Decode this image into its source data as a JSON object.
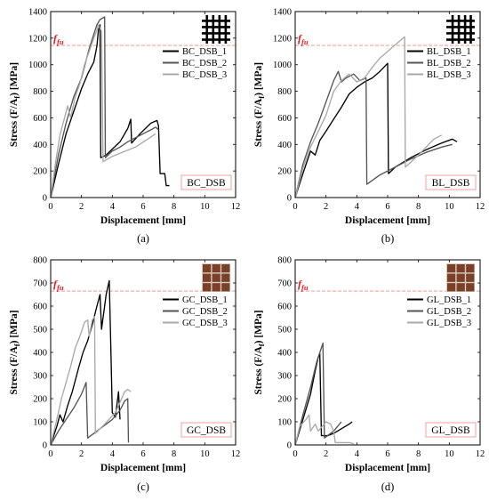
{
  "figure": {
    "colors": {
      "series": [
        "#000000",
        "#555555",
        "#a8a8a8"
      ],
      "ffu_line": "#f08a8a",
      "ffu_text": "#e31a1c",
      "label_box": "#f2a0a0",
      "icon_brown": "#7a4028",
      "icon_mortar": "#d9c9bf"
    }
  },
  "chart_data": [
    {
      "type": "line",
      "panel_label": "(a)",
      "box_label": "BC_DSB",
      "icon": "carbon-grid-icon",
      "xlabel": "Displacement  [mm]",
      "ylabel": "Stress (F/A_f) [MPa]",
      "xlim": [
        0,
        12
      ],
      "ylim": [
        0,
        1400
      ],
      "xticks": [
        0,
        2,
        4,
        6,
        8,
        10,
        12
      ],
      "yticks": [
        0,
        200,
        400,
        600,
        800,
        1000,
        1200,
        1400
      ],
      "ref_line": {
        "label_main": "f",
        "label_sub": "fu",
        "y": 1145
      },
      "legend_position": "top-right",
      "grid": false,
      "series": [
        {
          "name": "BC_DSB_1",
          "points": [
            [
              0,
              0
            ],
            [
              0.5,
              250
            ],
            [
              1,
              480
            ],
            [
              1.5,
              650
            ],
            [
              2,
              820
            ],
            [
              2.4,
              930
            ],
            [
              2.8,
              1020
            ],
            [
              3.0,
              1140
            ],
            [
              3.1,
              1260
            ],
            [
              3.2,
              1300
            ],
            [
              3.25,
              300
            ],
            [
              3.6,
              320
            ],
            [
              4.5,
              420
            ],
            [
              5.0,
              520
            ],
            [
              5.2,
              590
            ],
            [
              5.25,
              410
            ],
            [
              5.8,
              480
            ],
            [
              6.5,
              560
            ],
            [
              6.9,
              580
            ],
            [
              7.0,
              540
            ],
            [
              7.1,
              180
            ],
            [
              7.4,
              180
            ],
            [
              7.5,
              90
            ],
            [
              7.7,
              90
            ]
          ]
        },
        {
          "name": "BC_DSB_2",
          "points": [
            [
              0,
              0
            ],
            [
              0.5,
              320
            ],
            [
              1,
              560
            ],
            [
              1.5,
              760
            ],
            [
              2,
              900
            ],
            [
              2.5,
              1120
            ],
            [
              2.8,
              1230
            ],
            [
              3.0,
              1300
            ],
            [
              3.2,
              1340
            ],
            [
              3.5,
              1360
            ],
            [
              3.55,
              300
            ],
            [
              4,
              350
            ],
            [
              4.5,
              380
            ],
            [
              5,
              420
            ],
            [
              5.5,
              450
            ],
            [
              6,
              480
            ],
            [
              6.5,
              510
            ],
            [
              6.8,
              530
            ],
            [
              7.0,
              510
            ]
          ]
        },
        {
          "name": "BC_DSB_3",
          "points": [
            [
              0,
              0
            ],
            [
              0.3,
              250
            ],
            [
              0.6,
              470
            ],
            [
              0.9,
              600
            ],
            [
              1.1,
              690
            ],
            [
              1.3,
              600
            ],
            [
              1.6,
              760
            ],
            [
              1.9,
              860
            ],
            [
              2.2,
              1000
            ],
            [
              2.5,
              1100
            ],
            [
              2.8,
              1200
            ],
            [
              3.0,
              1260
            ],
            [
              3.1,
              1300
            ],
            [
              3.3,
              1250
            ],
            [
              3.4,
              270
            ],
            [
              4.0,
              310
            ],
            [
              5.5,
              380
            ],
            [
              6.3,
              440
            ],
            [
              6.8,
              480
            ]
          ]
        }
      ]
    },
    {
      "type": "line",
      "panel_label": "(b)",
      "box_label": "BL_DSB",
      "icon": "basalt-grid-icon",
      "xlabel": "Displacement  [mm]",
      "ylabel": "Stress (F/A_f) [MPa]",
      "xlim": [
        0,
        12
      ],
      "ylim": [
        0,
        1400
      ],
      "xticks": [
        0,
        2,
        4,
        6,
        8,
        10,
        12
      ],
      "yticks": [
        0,
        200,
        400,
        600,
        800,
        1000,
        1200,
        1400
      ],
      "ref_line": {
        "label_main": "f",
        "label_sub": "fu",
        "y": 1145
      },
      "legend_position": "top-right",
      "grid": false,
      "series": [
        {
          "name": "BL_DSB_1",
          "points": [
            [
              0,
              0
            ],
            [
              0.5,
              180
            ],
            [
              1,
              350
            ],
            [
              1.3,
              320
            ],
            [
              1.6,
              430
            ],
            [
              2,
              500
            ],
            [
              2.5,
              590
            ],
            [
              3,
              680
            ],
            [
              3.5,
              780
            ],
            [
              4,
              830
            ],
            [
              4.5,
              870
            ],
            [
              5,
              900
            ],
            [
              5.5,
              950
            ],
            [
              6,
              1010
            ],
            [
              6.05,
              180
            ],
            [
              6.5,
              230
            ],
            [
              7.5,
              300
            ],
            [
              8.5,
              360
            ],
            [
              9.5,
              410
            ],
            [
              10.2,
              440
            ],
            [
              10.5,
              420
            ]
          ]
        },
        {
          "name": "BL_DSB_2",
          "points": [
            [
              0,
              0
            ],
            [
              0.5,
              250
            ],
            [
              1,
              420
            ],
            [
              1.5,
              560
            ],
            [
              2,
              720
            ],
            [
              2.5,
              880
            ],
            [
              2.8,
              950
            ],
            [
              3.0,
              870
            ],
            [
              3.3,
              900
            ],
            [
              3.8,
              930
            ],
            [
              4.2,
              880
            ],
            [
              4.6,
              900
            ],
            [
              4.65,
              100
            ],
            [
              5.5,
              170
            ],
            [
              6.5,
              230
            ],
            [
              7.5,
              290
            ],
            [
              8.5,
              340
            ],
            [
              9.5,
              380
            ],
            [
              10.2,
              400
            ]
          ]
        },
        {
          "name": "BL_DSB_3",
          "points": [
            [
              0,
              0
            ],
            [
              0.5,
              220
            ],
            [
              1,
              380
            ],
            [
              1.5,
              500
            ],
            [
              2,
              620
            ],
            [
              2.5,
              800
            ],
            [
              3,
              880
            ],
            [
              3.5,
              930
            ],
            [
              4,
              870
            ],
            [
              4.5,
              900
            ],
            [
              5,
              980
            ],
            [
              5.5,
              1050
            ],
            [
              6,
              1100
            ],
            [
              6.5,
              1150
            ],
            [
              7.0,
              1200
            ],
            [
              7.1,
              1210
            ],
            [
              7.15,
              230
            ],
            [
              8,
              320
            ],
            [
              8.5,
              380
            ],
            [
              9.0,
              440
            ],
            [
              9.5,
              470
            ]
          ]
        }
      ]
    },
    {
      "type": "line",
      "panel_label": "(c)",
      "box_label": "GC_DSB",
      "icon": "glass-mesh-icon",
      "xlabel": "Displacement  [mm]",
      "ylabel": "Stress (F/A_f) [MPa]",
      "xlim": [
        0,
        12
      ],
      "ylim": [
        0,
        800
      ],
      "xticks": [
        0,
        2,
        4,
        6,
        8,
        10,
        12
      ],
      "yticks": [
        0,
        100,
        200,
        300,
        400,
        500,
        600,
        700,
        800
      ],
      "ref_line": {
        "label_main": "f",
        "label_sub": "fu",
        "y": 665
      },
      "legend_position": "top-right",
      "grid": false,
      "series": [
        {
          "name": "GC_DSB_1",
          "points": [
            [
              0,
              0
            ],
            [
              0.4,
              80
            ],
            [
              0.6,
              130
            ],
            [
              0.8,
              100
            ],
            [
              1.1,
              170
            ],
            [
              1.4,
              230
            ],
            [
              1.8,
              330
            ],
            [
              2.1,
              400
            ],
            [
              2.4,
              450
            ],
            [
              2.7,
              520
            ],
            [
              3.0,
              600
            ],
            [
              3.2,
              650
            ],
            [
              3.3,
              500
            ],
            [
              3.6,
              650
            ],
            [
              3.8,
              710
            ],
            [
              3.9,
              430
            ],
            [
              4.0,
              140
            ],
            [
              4.2,
              120
            ],
            [
              4.4,
              230
            ],
            [
              4.5,
              110
            ]
          ]
        },
        {
          "name": "GC_DSB_2",
          "points": [
            [
              0,
              0
            ],
            [
              0.5,
              60
            ],
            [
              1,
              110
            ],
            [
              1.5,
              160
            ],
            [
              2,
              220
            ],
            [
              2.3,
              270
            ],
            [
              2.4,
              30
            ],
            [
              3,
              60
            ],
            [
              4,
              110
            ],
            [
              4.5,
              150
            ],
            [
              4.8,
              190
            ],
            [
              5.0,
              200
            ],
            [
              5.05,
              10
            ]
          ]
        },
        {
          "name": "GC_DSB_3",
          "points": [
            [
              0,
              0
            ],
            [
              0.5,
              140
            ],
            [
              0.7,
              200
            ],
            [
              1.0,
              270
            ],
            [
              1.3,
              340
            ],
            [
              1.6,
              420
            ],
            [
              1.9,
              470
            ],
            [
              2.2,
              530
            ],
            [
              2.4,
              540
            ],
            [
              2.5,
              470
            ],
            [
              2.7,
              540
            ],
            [
              2.85,
              555
            ],
            [
              2.9,
              50
            ],
            [
              3.5,
              90
            ],
            [
              4.2,
              140
            ],
            [
              4.8,
              230
            ],
            [
              5.0,
              240
            ],
            [
              5.2,
              230
            ]
          ]
        }
      ]
    },
    {
      "type": "line",
      "panel_label": "(d)",
      "box_label": "GL_DSB",
      "icon": "glass-mesh-icon",
      "xlabel": "Displacement  [mm]",
      "ylabel": "Stress (F/A_f) [MPa]",
      "xlim": [
        0,
        12
      ],
      "ylim": [
        0,
        800
      ],
      "xticks": [
        0,
        2,
        4,
        6,
        8,
        10,
        12
      ],
      "yticks": [
        0,
        100,
        200,
        300,
        400,
        500,
        600,
        700,
        800
      ],
      "ref_line": {
        "label_main": "f",
        "label_sub": "fu",
        "y": 665
      },
      "legend_position": "top-right",
      "grid": false,
      "series": [
        {
          "name": "GL_DSB_1",
          "points": [
            [
              0,
              0
            ],
            [
              0.5,
              110
            ],
            [
              1.0,
              220
            ],
            [
              1.3,
              320
            ],
            [
              1.5,
              380
            ],
            [
              1.6,
              395
            ],
            [
              1.7,
              40
            ],
            [
              2.1,
              40
            ],
            [
              2.5,
              50
            ],
            [
              3.0,
              70
            ],
            [
              3.5,
              90
            ],
            [
              3.7,
              100
            ]
          ]
        },
        {
          "name": "GL_DSB_2",
          "points": [
            [
              0,
              0
            ],
            [
              0.5,
              130
            ],
            [
              1.0,
              250
            ],
            [
              1.4,
              360
            ],
            [
              1.7,
              420
            ],
            [
              1.8,
              440
            ],
            [
              1.9,
              30
            ],
            [
              2.5,
              60
            ],
            [
              3.0,
              100
            ]
          ]
        },
        {
          "name": "GL_DSB_3",
          "points": [
            [
              0,
              0
            ],
            [
              0.3,
              80
            ],
            [
              0.7,
              110
            ],
            [
              0.9,
              130
            ],
            [
              1.0,
              60
            ],
            [
              1.3,
              90
            ],
            [
              1.5,
              60
            ],
            [
              2.0,
              100
            ],
            [
              2.3,
              90
            ],
            [
              2.5,
              60
            ],
            [
              2.6,
              10
            ],
            [
              3.5,
              10
            ],
            [
              3.8,
              5
            ]
          ]
        }
      ]
    }
  ]
}
